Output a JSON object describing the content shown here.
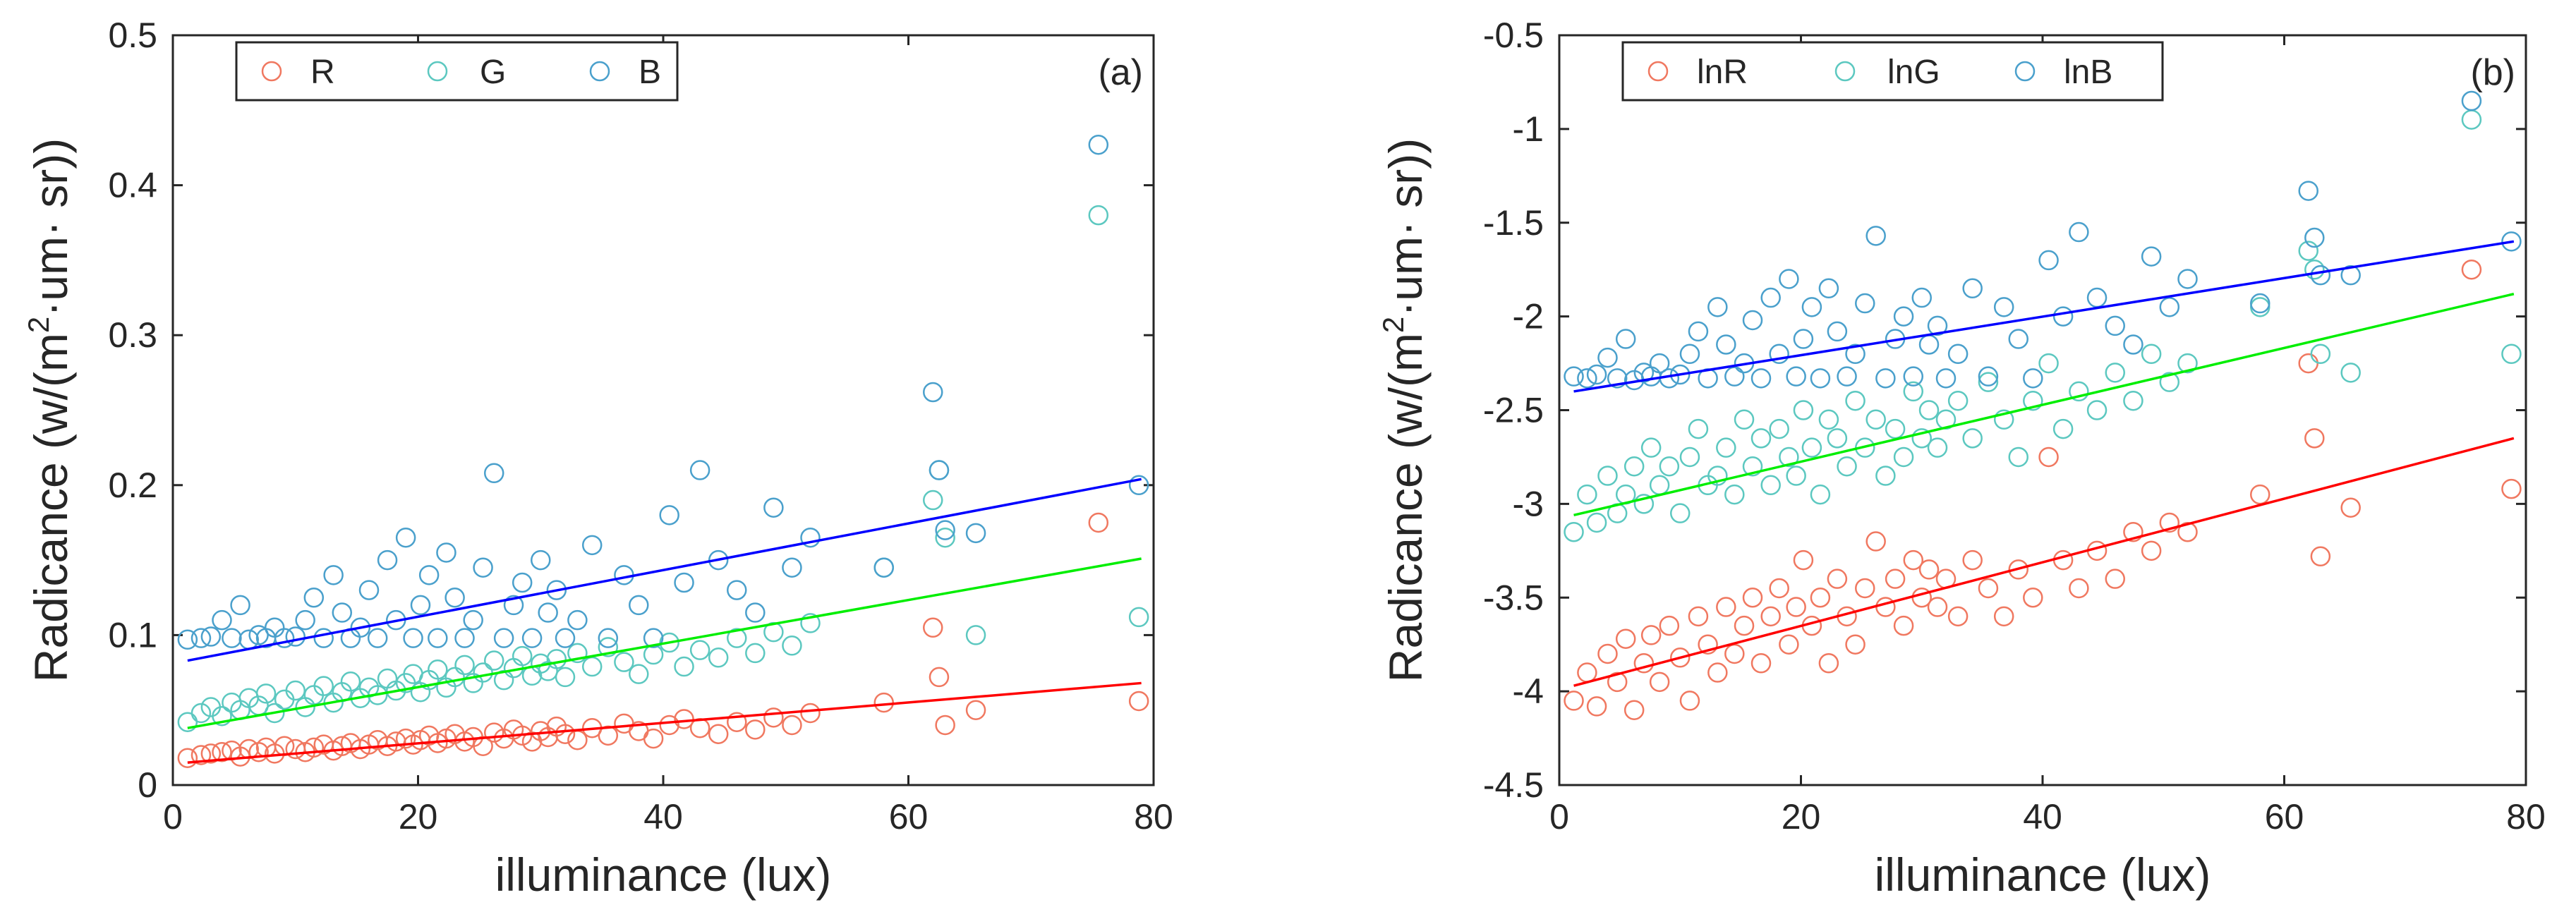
{
  "colors": {
    "R": "#f07860",
    "G": "#5cc8c0",
    "B": "#4aa0cc",
    "fit_R": "#ff0000",
    "fit_G": "#00ee00",
    "fit_B": "#0000ff",
    "axis": "#262626"
  },
  "chart_data": [
    {
      "type": "scatter",
      "panel_label": "(a)",
      "xlabel": "illuminance (lux)",
      "ylabel_prefix": "Radicance (w/(m",
      "ylabel_sup": "2",
      "ylabel_suffix": "·um· sr))",
      "xlim": [
        0,
        80
      ],
      "ylim": [
        0,
        0.5
      ],
      "x_ticks": [
        0,
        20,
        40,
        60,
        80
      ],
      "x_tick_labels": [
        "0",
        "20",
        "40",
        "60",
        "80"
      ],
      "y_ticks": [
        0,
        0.1,
        0.2,
        0.3,
        0.4,
        0.5
      ],
      "y_tick_labels": [
        "0",
        "0.1",
        "0.2",
        "0.3",
        "0.4",
        "0.5"
      ],
      "legend": [
        "R",
        "G",
        "B"
      ],
      "legend_position": "top-left",
      "x": [
        1.2,
        2.3,
        3.1,
        4.0,
        4.8,
        5.5,
        6.2,
        7.0,
        7.6,
        8.3,
        9.1,
        10.0,
        10.8,
        11.5,
        12.3,
        13.1,
        13.8,
        14.5,
        15.3,
        16.0,
        16.7,
        17.5,
        18.2,
        19.0,
        19.6,
        20.2,
        20.9,
        21.6,
        22.3,
        23.0,
        23.8,
        24.5,
        25.3,
        26.2,
        27.0,
        27.8,
        28.5,
        29.3,
        30.0,
        30.6,
        31.3,
        32.0,
        33.0,
        34.2,
        35.5,
        36.8,
        38.0,
        39.2,
        40.5,
        41.7,
        43.0,
        44.5,
        46.0,
        47.5,
        49.0,
        50.5,
        52.0,
        58.0,
        62.0,
        62.5,
        63.0,
        65.5,
        75.5,
        78.8
      ],
      "series": [
        {
          "name": "R",
          "values": [
            0.018,
            0.02,
            0.021,
            0.022,
            0.023,
            0.019,
            0.024,
            0.022,
            0.025,
            0.021,
            0.026,
            0.024,
            0.022,
            0.025,
            0.027,
            0.023,
            0.026,
            0.028,
            0.024,
            0.027,
            0.03,
            0.026,
            0.029,
            0.031,
            0.027,
            0.03,
            0.033,
            0.028,
            0.031,
            0.034,
            0.029,
            0.032,
            0.026,
            0.035,
            0.031,
            0.037,
            0.033,
            0.029,
            0.036,
            0.032,
            0.039,
            0.034,
            0.03,
            0.038,
            0.033,
            0.041,
            0.036,
            0.031,
            0.04,
            0.044,
            0.038,
            0.034,
            0.042,
            0.037,
            0.045,
            0.04,
            0.048,
            0.055,
            0.105,
            0.072,
            0.04,
            0.05,
            0.175,
            0.056
          ]
        },
        {
          "name": "G",
          "values": [
            0.042,
            0.048,
            0.052,
            0.046,
            0.055,
            0.05,
            0.058,
            0.053,
            0.061,
            0.048,
            0.057,
            0.063,
            0.052,
            0.06,
            0.066,
            0.055,
            0.062,
            0.069,
            0.058,
            0.065,
            0.06,
            0.071,
            0.063,
            0.068,
            0.074,
            0.062,
            0.07,
            0.077,
            0.065,
            0.072,
            0.08,
            0.068,
            0.075,
            0.083,
            0.07,
            0.078,
            0.086,
            0.073,
            0.081,
            0.076,
            0.084,
            0.072,
            0.088,
            0.079,
            0.092,
            0.082,
            0.074,
            0.087,
            0.095,
            0.079,
            0.09,
            0.085,
            0.098,
            0.088,
            0.102,
            0.093,
            0.108,
            0.145,
            0.19,
            0.21,
            0.165,
            0.1,
            0.38,
            0.112
          ]
        },
        {
          "name": "B",
          "values": [
            0.097,
            0.098,
            0.099,
            0.11,
            0.098,
            0.12,
            0.097,
            0.1,
            0.098,
            0.105,
            0.098,
            0.099,
            0.11,
            0.125,
            0.098,
            0.14,
            0.115,
            0.098,
            0.105,
            0.13,
            0.098,
            0.15,
            0.11,
            0.165,
            0.098,
            0.12,
            0.14,
            0.098,
            0.155,
            0.125,
            0.098,
            0.11,
            0.145,
            0.208,
            0.098,
            0.12,
            0.135,
            0.098,
            0.15,
            0.115,
            0.13,
            0.098,
            0.11,
            0.16,
            0.098,
            0.14,
            0.12,
            0.098,
            0.18,
            0.135,
            0.21,
            0.15,
            0.13,
            0.115,
            0.185,
            0.145,
            0.165,
            0.145,
            0.262,
            0.21,
            0.17,
            0.168,
            0.427,
            0.2
          ]
        }
      ],
      "fit_lines": [
        {
          "name": "R",
          "x": [
            1.2,
            79
          ],
          "y": [
            0.015,
            0.068
          ]
        },
        {
          "name": "G",
          "x": [
            1.2,
            79
          ],
          "y": [
            0.038,
            0.151
          ]
        },
        {
          "name": "B",
          "x": [
            1.2,
            79
          ],
          "y": [
            0.083,
            0.204
          ]
        }
      ]
    },
    {
      "type": "scatter",
      "panel_label": "(b)",
      "xlabel": "illuminance (lux)",
      "ylabel_prefix": "Radicance (w/(m",
      "ylabel_sup": "2",
      "ylabel_suffix": "·um· sr))",
      "xlim": [
        0,
        80
      ],
      "ylim": [
        -4.5,
        -0.5
      ],
      "x_ticks": [
        0,
        20,
        40,
        60,
        80
      ],
      "x_tick_labels": [
        "0",
        "20",
        "40",
        "60",
        "80"
      ],
      "y_ticks": [
        -4.5,
        -4,
        -3.5,
        -3,
        -2.5,
        -2,
        -1.5,
        -1,
        -0.5
      ],
      "y_tick_labels": [
        "-4.5",
        "-4",
        "-3.5",
        "-3",
        "-2.5",
        "-2",
        "-1.5",
        "-1",
        "-0.5"
      ],
      "legend": [
        "lnR",
        "lnG",
        "lnB"
      ],
      "legend_position": "top-left",
      "x": [
        1.2,
        2.3,
        3.1,
        4.0,
        4.8,
        5.5,
        6.2,
        7.0,
        7.6,
        8.3,
        9.1,
        10.0,
        10.8,
        11.5,
        12.3,
        13.1,
        13.8,
        14.5,
        15.3,
        16.0,
        16.7,
        17.5,
        18.2,
        19.0,
        19.6,
        20.2,
        20.9,
        21.6,
        22.3,
        23.0,
        23.8,
        24.5,
        25.3,
        26.2,
        27.0,
        27.8,
        28.5,
        29.3,
        30.0,
        30.6,
        31.3,
        32.0,
        33.0,
        34.2,
        35.5,
        36.8,
        38.0,
        39.2,
        40.5,
        41.7,
        43.0,
        44.5,
        46.0,
        47.5,
        49.0,
        50.5,
        52.0,
        58.0,
        62.0,
        62.5,
        63.0,
        65.5,
        75.5,
        78.8
      ],
      "series": [
        {
          "name": "lnR",
          "values": [
            -4.05,
            -3.9,
            -4.08,
            -3.8,
            -3.95,
            -3.72,
            -4.1,
            -3.85,
            -3.7,
            -3.95,
            -3.65,
            -3.82,
            -4.05,
            -3.6,
            -3.75,
            -3.9,
            -3.55,
            -3.8,
            -3.65,
            -3.5,
            -3.85,
            -3.6,
            -3.45,
            -3.75,
            -3.55,
            -3.3,
            -3.65,
            -3.5,
            -3.85,
            -3.4,
            -3.6,
            -3.75,
            -3.45,
            -3.2,
            -3.55,
            -3.4,
            -3.65,
            -3.3,
            -3.5,
            -3.35,
            -3.55,
            -3.4,
            -3.6,
            -3.3,
            -3.45,
            -3.6,
            -3.35,
            -3.5,
            -2.75,
            -3.3,
            -3.45,
            -3.25,
            -3.4,
            -3.15,
            -3.25,
            -3.1,
            -3.15,
            -2.95,
            -2.25,
            -2.65,
            -3.28,
            -3.02,
            -1.75,
            -2.92
          ]
        },
        {
          "name": "lnG",
          "values": [
            -3.15,
            -2.95,
            -3.1,
            -2.85,
            -3.05,
            -2.95,
            -2.8,
            -3.0,
            -2.7,
            -2.9,
            -2.8,
            -3.05,
            -2.75,
            -2.6,
            -2.9,
            -2.85,
            -2.7,
            -2.95,
            -2.55,
            -2.8,
            -2.65,
            -2.9,
            -2.6,
            -2.75,
            -2.85,
            -2.5,
            -2.7,
            -2.95,
            -2.55,
            -2.65,
            -2.8,
            -2.45,
            -2.7,
            -2.55,
            -2.85,
            -2.6,
            -2.75,
            -2.4,
            -2.65,
            -2.5,
            -2.7,
            -2.55,
            -2.45,
            -2.65,
            -2.35,
            -2.55,
            -2.75,
            -2.45,
            -2.25,
            -2.6,
            -2.4,
            -2.5,
            -2.3,
            -2.45,
            -2.2,
            -2.35,
            -2.25,
            -1.95,
            -1.65,
            -1.75,
            -2.2,
            -2.3,
            -0.95,
            -2.2
          ]
        },
        {
          "name": "lnB",
          "values": [
            -2.32,
            -2.33,
            -2.31,
            -2.22,
            -2.33,
            -2.12,
            -2.34,
            -2.3,
            -2.32,
            -2.25,
            -2.33,
            -2.31,
            -2.2,
            -2.08,
            -2.33,
            -1.95,
            -2.15,
            -2.32,
            -2.25,
            -2.02,
            -2.33,
            -1.9,
            -2.2,
            -1.8,
            -2.32,
            -2.12,
            -1.95,
            -2.33,
            -1.85,
            -2.08,
            -2.32,
            -2.2,
            -1.93,
            -1.57,
            -2.33,
            -2.12,
            -2.0,
            -2.32,
            -1.9,
            -2.15,
            -2.05,
            -2.33,
            -2.2,
            -1.85,
            -2.32,
            -1.95,
            -2.12,
            -2.33,
            -1.7,
            -2.0,
            -1.55,
            -1.9,
            -2.05,
            -2.15,
            -1.68,
            -1.95,
            -1.8,
            -1.93,
            -1.33,
            -1.58,
            -1.78,
            -1.78,
            -0.85,
            -1.6
          ]
        }
      ],
      "fit_lines": [
        {
          "name": "lnR",
          "x": [
            1.2,
            79
          ],
          "y": [
            -3.97,
            -2.65
          ]
        },
        {
          "name": "lnG",
          "x": [
            1.2,
            79
          ],
          "y": [
            -3.06,
            -1.88
          ]
        },
        {
          "name": "lnB",
          "x": [
            1.2,
            79
          ],
          "y": [
            -2.4,
            -1.6
          ]
        }
      ]
    }
  ]
}
